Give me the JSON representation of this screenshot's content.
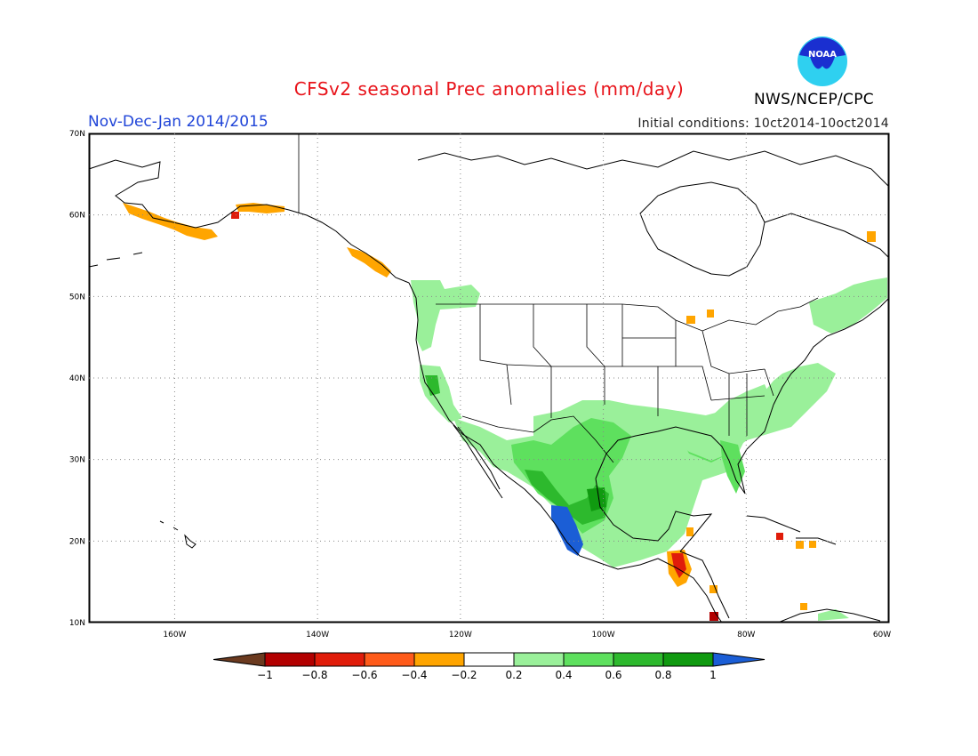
{
  "header": {
    "title": "CFSv2 seasonal Prec anomalies (mm/day)",
    "period": "Nov-Dec-Jan 2014/2015",
    "initial_conditions": "Initial conditions: 10ct2014-10oct2014",
    "agency": "NWS/NCEP/CPC",
    "logo_text": "NOAA"
  },
  "map": {
    "lat_labels": [
      "70N",
      "60N",
      "50N",
      "40N",
      "30N",
      "20N",
      "10N"
    ],
    "lon_labels": [
      "160W",
      "140W",
      "120W",
      "100W",
      "80W",
      "60W"
    ],
    "lon_range": [
      -172,
      -60
    ],
    "lat_range": [
      10,
      70
    ],
    "anomaly_regions": [
      {
        "name": "gulf-coast-mexico",
        "level": 0.6
      },
      {
        "name": "west-mexico-coast",
        "level": 1.0
      },
      {
        "name": "southeast-us",
        "level": 0.4
      },
      {
        "name": "pacific-northwest",
        "level": 0.4
      },
      {
        "name": "northern-california",
        "level": 0.6
      },
      {
        "name": "newfoundland-nova-scotia",
        "level": 0.4
      },
      {
        "name": "alaska-peninsula",
        "level": -0.4
      },
      {
        "name": "gulf-of-alaska-coast",
        "level": -0.4
      },
      {
        "name": "central-america",
        "level": -0.6
      },
      {
        "name": "caribbean",
        "level": -0.4
      }
    ]
  },
  "legend": {
    "labels": [
      "-1",
      "-0.8",
      "-0.6",
      "-0.4",
      "-0.2",
      "0.2",
      "0.4",
      "0.6",
      "0.8",
      "1"
    ],
    "colors": [
      "#6b3a1f",
      "#b20000",
      "#e01c0a",
      "#ff5b1a",
      "#ffa500",
      "#ffffff",
      "#9af09a",
      "#5ee05e",
      "#2db92d",
      "#109a10",
      "#1b5ed6"
    ]
  }
}
